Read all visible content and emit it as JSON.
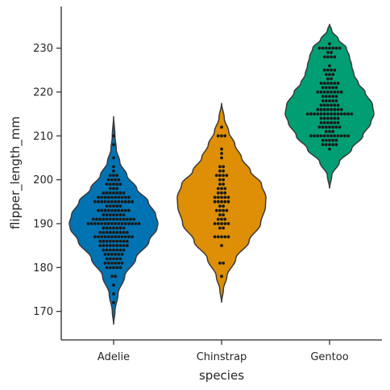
{
  "chart_data": {
    "type": "violin",
    "title": "",
    "xlabel": "species",
    "ylabel": "flipper_length_mm",
    "categories": [
      "Adelie",
      "Chinstrap",
      "Gentoo"
    ],
    "ylim": [
      163.5,
      239.5
    ],
    "yticks": [
      170,
      180,
      190,
      200,
      210,
      220,
      230
    ],
    "grid": false,
    "legend": "none",
    "colors": {
      "Adelie": "#0173b2",
      "Chinstrap": "#de8f05",
      "Gentoo": "#029e73"
    },
    "series": [
      {
        "category": "Adelie",
        "kde_range": [
          167,
          214.5
        ],
        "density_profile": [
          [
            167,
            0.0
          ],
          [
            170,
            0.03
          ],
          [
            174,
            0.1
          ],
          [
            178,
            0.25
          ],
          [
            182,
            0.5
          ],
          [
            186,
            0.8
          ],
          [
            189,
            0.98
          ],
          [
            190,
            1.0
          ],
          [
            192,
            0.95
          ],
          [
            195,
            0.78
          ],
          [
            198,
            0.52
          ],
          [
            201,
            0.3
          ],
          [
            204,
            0.14
          ],
          [
            207,
            0.06
          ],
          [
            210,
            0.03
          ],
          [
            214.5,
            0.0
          ]
        ],
        "points": {
          "172": 1,
          "174": 1,
          "176": 1,
          "178": 2,
          "180": 5,
          "181": 6,
          "182": 5,
          "183": 6,
          "184": 7,
          "185": 9,
          "186": 9,
          "187": 12,
          "188": 9,
          "189": 7,
          "190": 16,
          "191": 13,
          "192": 7,
          "193": 10,
          "194": 5,
          "195": 12,
          "196": 10,
          "197": 7,
          "198": 3,
          "199": 5,
          "200": 4,
          "201": 3,
          "202": 1,
          "203": 1,
          "205": 1,
          "208": 1,
          "210": 1
        }
      },
      {
        "category": "Chinstrap",
        "kde_range": [
          172,
          217.5
        ],
        "density_profile": [
          [
            172,
            0.0
          ],
          [
            175,
            0.04
          ],
          [
            178,
            0.12
          ],
          [
            182,
            0.32
          ],
          [
            186,
            0.62
          ],
          [
            190,
            0.88
          ],
          [
            194,
            0.99
          ],
          [
            196,
            1.0
          ],
          [
            199,
            0.9
          ],
          [
            202,
            0.65
          ],
          [
            205,
            0.45
          ],
          [
            208,
            0.3
          ],
          [
            211,
            0.16
          ],
          [
            214,
            0.06
          ],
          [
            217.5,
            0.0
          ]
        ],
        "points": {
          "178": 1,
          "181": 2,
          "185": 1,
          "187": 5,
          "189": 2,
          "190": 5,
          "191": 3,
          "192": 2,
          "193": 4,
          "194": 2,
          "195": 5,
          "196": 5,
          "197": 3,
          "198": 3,
          "199": 2,
          "200": 2,
          "201": 4,
          "202": 2,
          "203": 2,
          "205": 1,
          "206": 1,
          "207": 1,
          "210": 3,
          "212": 1
        }
      },
      {
        "category": "Gentoo",
        "kde_range": [
          198,
          235.5
        ],
        "density_profile": [
          [
            198,
            0.0
          ],
          [
            201,
            0.05
          ],
          [
            204,
            0.22
          ],
          [
            207,
            0.5
          ],
          [
            210,
            0.75
          ],
          [
            213,
            0.93
          ],
          [
            215,
            1.0
          ],
          [
            217,
            0.97
          ],
          [
            220,
            0.8
          ],
          [
            222,
            0.65
          ],
          [
            224,
            0.55
          ],
          [
            226,
            0.5
          ],
          [
            228,
            0.45
          ],
          [
            230,
            0.38
          ],
          [
            232,
            0.2
          ],
          [
            234,
            0.05
          ],
          [
            235.5,
            0.0
          ]
        ],
        "points": {
          "207": 1,
          "208": 5,
          "209": 5,
          "210": 12,
          "211": 3,
          "212": 7,
          "213": 6,
          "214": 6,
          "215": 14,
          "216": 8,
          "217": 6,
          "218": 5,
          "219": 5,
          "220": 8,
          "221": 5,
          "222": 6,
          "223": 2,
          "224": 3,
          "225": 4,
          "226": 1,
          "228": 4,
          "229": 2,
          "230": 7,
          "231": 1
        }
      }
    ]
  }
}
